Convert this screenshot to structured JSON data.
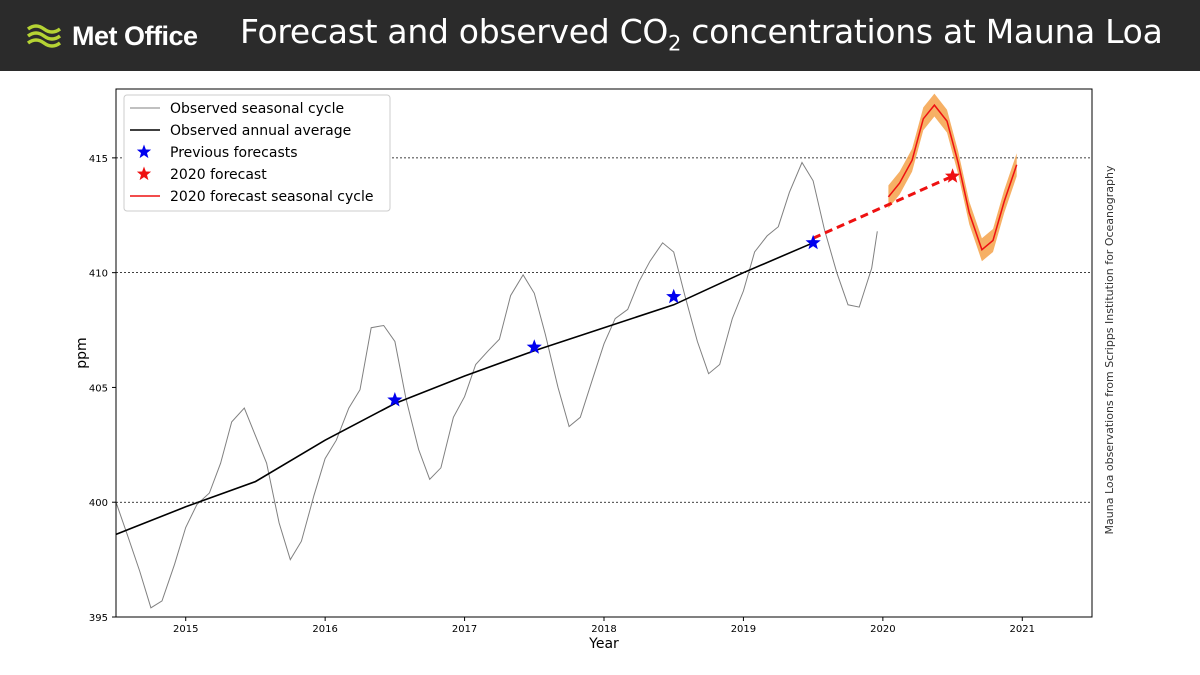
{
  "header": {
    "brand": "Met Office",
    "title_main": "Forecast and observed CO",
    "title_sub": "2",
    "title_rest": " concentrations at Mauna Loa"
  },
  "source_note": "Mauna Loa observations from Scripps Institution for Oceanography",
  "colors": {
    "header_bg": "#2b2b2b",
    "logo_green": "#b5d334",
    "seasonal": "#808080",
    "annual": "#000000",
    "previous_forecast": "#0000ee",
    "forecast_2020": "#ee1111",
    "forecast_band": "#f5a24a"
  },
  "chart_data": {
    "type": "line",
    "xlabel": "Year",
    "ylabel": "ppm",
    "xlim": [
      2014.5,
      2021.5
    ],
    "ylim": [
      395,
      418
    ],
    "xticks": [
      2015,
      2016,
      2017,
      2018,
      2019,
      2020,
      2021
    ],
    "yticks": [
      395,
      400,
      405,
      410,
      415
    ],
    "gridlines_y": [
      400,
      410,
      415
    ],
    "legend_position": "top-left",
    "legend": [
      {
        "label": "Observed seasonal cycle",
        "kind": "line-gray"
      },
      {
        "label": "Observed annual average",
        "kind": "line-black"
      },
      {
        "label": "Previous forecasts",
        "kind": "star-blue"
      },
      {
        "label": "2020 forecast",
        "kind": "star-red"
      },
      {
        "label": "2020 forecast seasonal cycle",
        "kind": "line-red"
      }
    ],
    "series": [
      {
        "name": "Observed seasonal cycle",
        "points": [
          [
            2014.5,
            400.0
          ],
          [
            2014.58,
            398.6
          ],
          [
            2014.67,
            397.0
          ],
          [
            2014.75,
            395.4
          ],
          [
            2014.83,
            395.7
          ],
          [
            2014.92,
            397.3
          ],
          [
            2015.0,
            398.9
          ],
          [
            2015.08,
            399.9
          ],
          [
            2015.17,
            400.4
          ],
          [
            2015.25,
            401.7
          ],
          [
            2015.33,
            403.5
          ],
          [
            2015.42,
            404.1
          ],
          [
            2015.5,
            402.9
          ],
          [
            2015.58,
            401.7
          ],
          [
            2015.67,
            399.1
          ],
          [
            2015.75,
            397.5
          ],
          [
            2015.83,
            398.3
          ],
          [
            2015.92,
            400.3
          ],
          [
            2016.0,
            401.9
          ],
          [
            2016.08,
            402.7
          ],
          [
            2016.17,
            404.1
          ],
          [
            2016.25,
            404.9
          ],
          [
            2016.33,
            407.6
          ],
          [
            2016.42,
            407.7
          ],
          [
            2016.5,
            407.0
          ],
          [
            2016.58,
            404.5
          ],
          [
            2016.67,
            402.3
          ],
          [
            2016.75,
            401.0
          ],
          [
            2016.83,
            401.5
          ],
          [
            2016.92,
            403.7
          ],
          [
            2017.0,
            404.6
          ],
          [
            2017.08,
            406.0
          ],
          [
            2017.17,
            406.6
          ],
          [
            2017.25,
            407.1
          ],
          [
            2017.33,
            409.0
          ],
          [
            2017.42,
            409.9
          ],
          [
            2017.5,
            409.1
          ],
          [
            2017.58,
            407.3
          ],
          [
            2017.67,
            405.0
          ],
          [
            2017.75,
            403.3
          ],
          [
            2017.83,
            403.7
          ],
          [
            2017.92,
            405.4
          ],
          [
            2018.0,
            406.9
          ],
          [
            2018.08,
            408.0
          ],
          [
            2018.17,
            408.4
          ],
          [
            2018.25,
            409.6
          ],
          [
            2018.33,
            410.5
          ],
          [
            2018.42,
            411.3
          ],
          [
            2018.5,
            410.9
          ],
          [
            2018.58,
            409.0
          ],
          [
            2018.67,
            407.0
          ],
          [
            2018.75,
            405.6
          ],
          [
            2018.83,
            406.0
          ],
          [
            2018.92,
            408.0
          ],
          [
            2019.0,
            409.2
          ],
          [
            2019.08,
            410.9
          ],
          [
            2019.17,
            411.6
          ],
          [
            2019.25,
            412.0
          ],
          [
            2019.33,
            413.5
          ],
          [
            2019.42,
            414.8
          ],
          [
            2019.5,
            414.0
          ],
          [
            2019.58,
            411.9
          ],
          [
            2019.67,
            410.0
          ],
          [
            2019.75,
            408.6
          ],
          [
            2019.83,
            408.5
          ],
          [
            2019.92,
            410.2
          ],
          [
            2019.96,
            411.8
          ]
        ]
      },
      {
        "name": "Observed annual average",
        "points": [
          [
            2014.5,
            398.6
          ],
          [
            2015.0,
            399.8
          ],
          [
            2015.5,
            400.9
          ],
          [
            2016.0,
            402.7
          ],
          [
            2016.5,
            404.3
          ],
          [
            2017.0,
            405.5
          ],
          [
            2017.5,
            406.6
          ],
          [
            2018.0,
            407.6
          ],
          [
            2018.5,
            408.6
          ],
          [
            2019.0,
            410.0
          ],
          [
            2019.5,
            411.3
          ]
        ]
      },
      {
        "name": "Previous forecasts",
        "points": [
          [
            2016.5,
            404.45
          ],
          [
            2017.5,
            406.75
          ],
          [
            2018.5,
            408.95
          ],
          [
            2019.5,
            411.3
          ]
        ]
      },
      {
        "name": "2020 forecast",
        "points": [
          [
            2020.5,
            414.2
          ]
        ]
      },
      {
        "name": "Forecast trend (dashed)",
        "points": [
          [
            2019.5,
            411.5
          ],
          [
            2020.5,
            414.2
          ]
        ]
      },
      {
        "name": "2020 forecast seasonal cycle",
        "points": [
          [
            2020.04,
            413.3
          ],
          [
            2020.12,
            413.9
          ],
          [
            2020.21,
            414.9
          ],
          [
            2020.29,
            416.7
          ],
          [
            2020.37,
            417.3
          ],
          [
            2020.46,
            416.6
          ],
          [
            2020.54,
            414.8
          ],
          [
            2020.62,
            412.6
          ],
          [
            2020.71,
            411.0
          ],
          [
            2020.79,
            411.4
          ],
          [
            2020.87,
            413.1
          ],
          [
            2020.96,
            414.7
          ]
        ],
        "band_halfwidth": 0.5
      }
    ]
  }
}
